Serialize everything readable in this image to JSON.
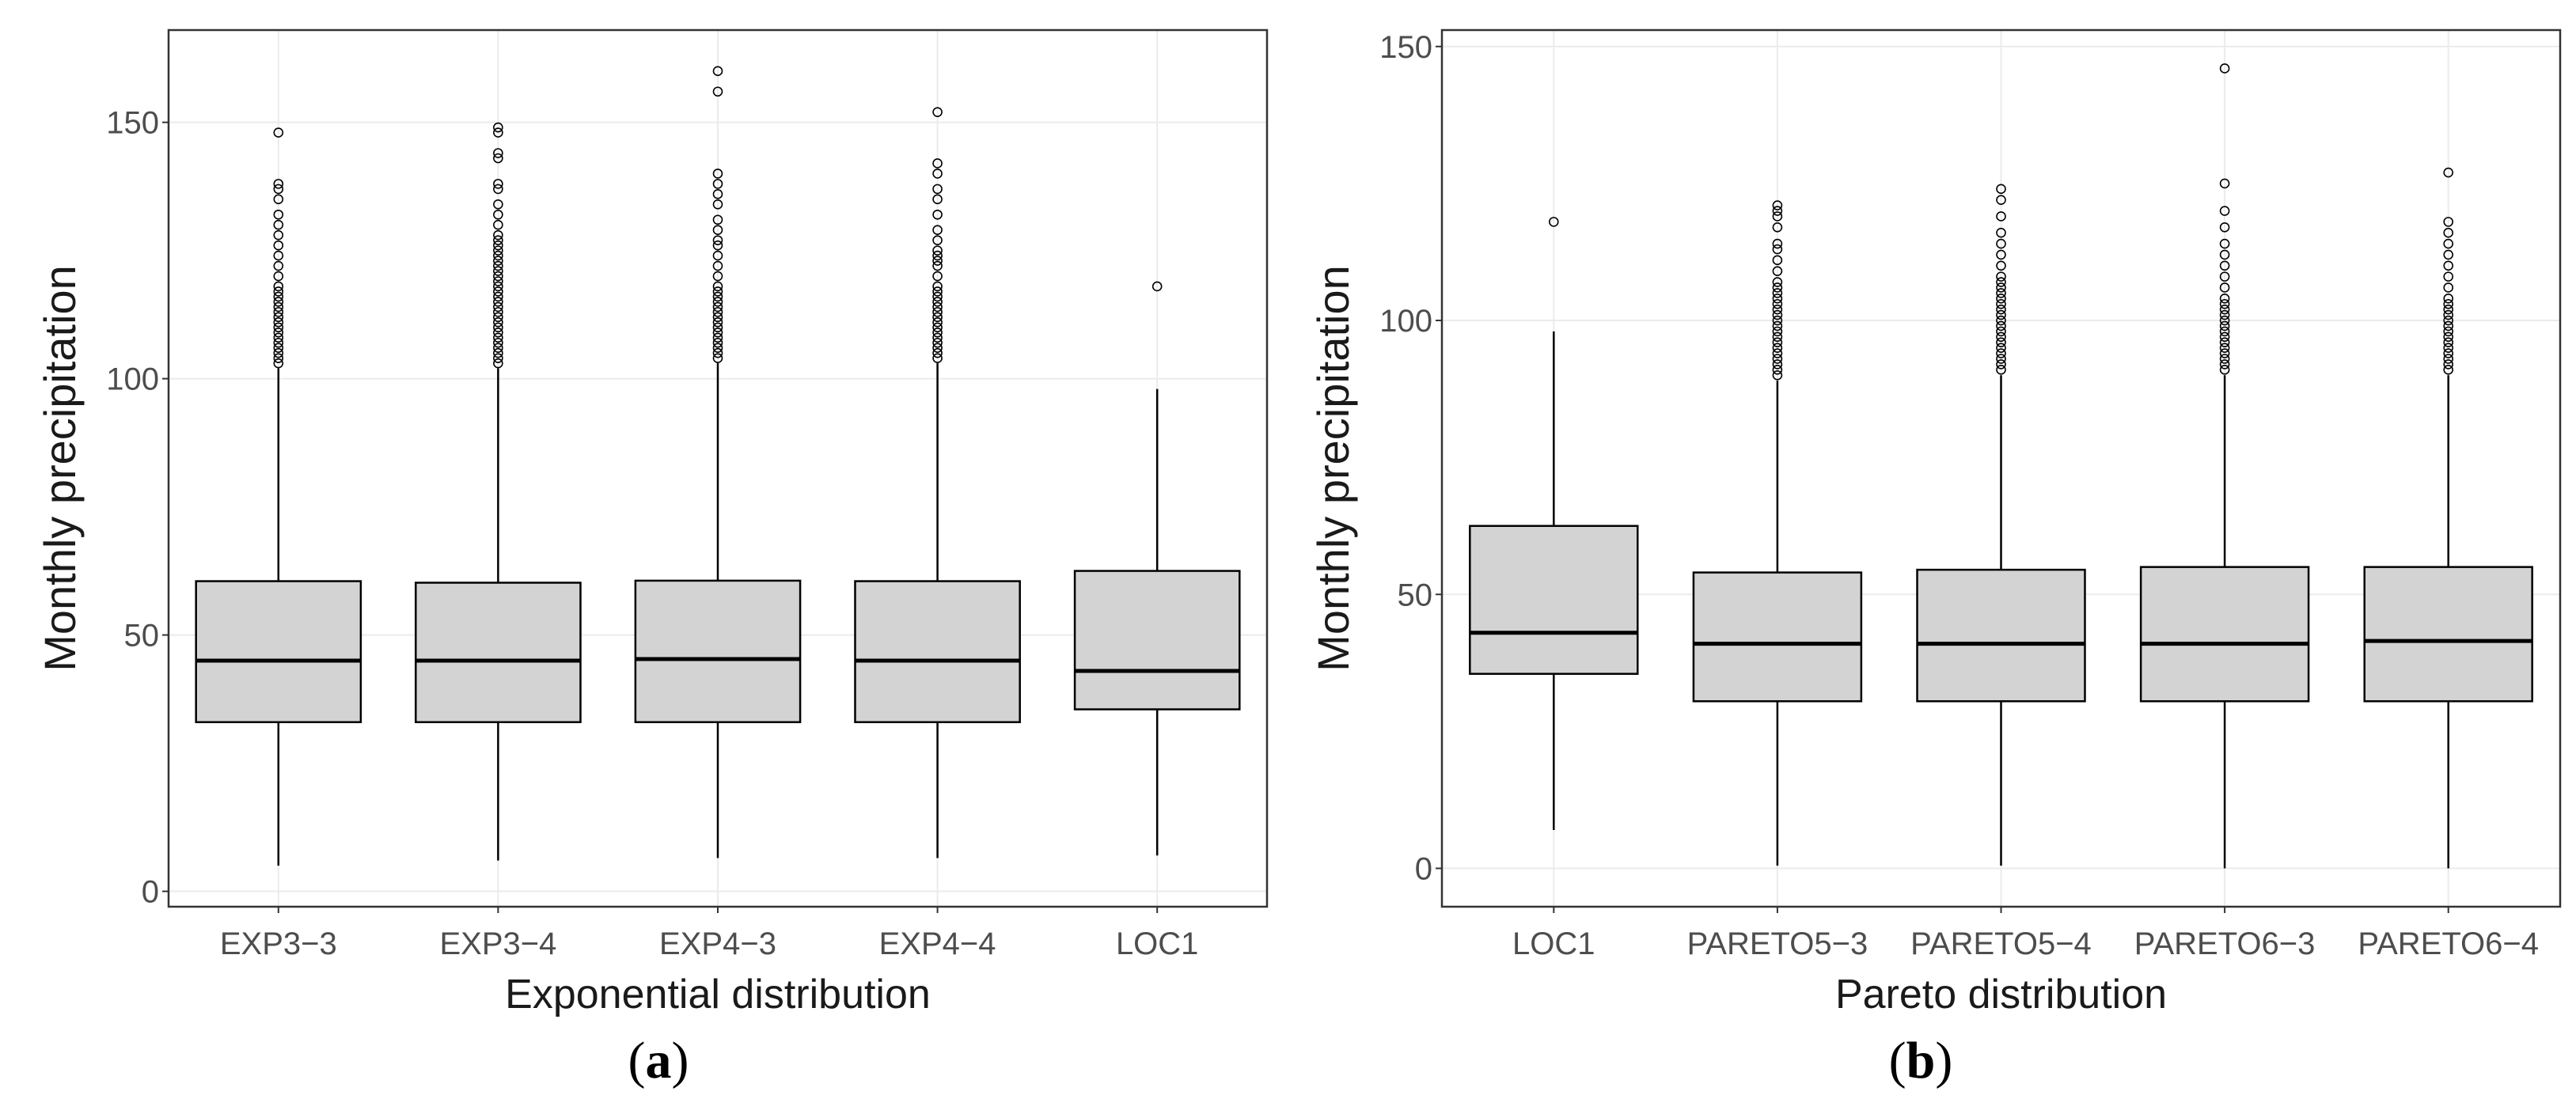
{
  "panels": [
    {
      "caption_letter": "a",
      "chart_data": {
        "type": "box",
        "xlabel": "Exponential distribution",
        "ylabel": "Monthly precipitation",
        "ylim": [
          -3,
          168
        ],
        "yticks": [
          0,
          50,
          100,
          150
        ],
        "grid": true,
        "categories": [
          "EXP3-3",
          "EXP3-4",
          "EXP4-3",
          "EXP4-4",
          "LOC1"
        ],
        "boxes": [
          {
            "whisker_low": 5,
            "q1": 33,
            "median": 45,
            "q3": 60.5,
            "whisker_high": 102,
            "outliers": [
              103,
              104,
              105,
              106,
              107,
              108,
              109,
              110,
              111,
              112,
              113,
              114,
              115,
              116,
              117,
              118,
              120,
              122,
              124,
              126,
              128,
              130,
              132,
              135,
              137,
              138,
              148
            ]
          },
          {
            "whisker_low": 6,
            "q1": 33,
            "median": 45,
            "q3": 60.2,
            "whisker_high": 102,
            "outliers": [
              103,
              104,
              105,
              106,
              107,
              108,
              109,
              110,
              111,
              112,
              113,
              114,
              115,
              116,
              117,
              118,
              119,
              120,
              121,
              122,
              123,
              124,
              125,
              126,
              127,
              128,
              130,
              132,
              134,
              137,
              138,
              143,
              144,
              148,
              149
            ]
          },
          {
            "whisker_low": 6.5,
            "q1": 33,
            "median": 45.3,
            "q3": 60.6,
            "whisker_high": 103,
            "outliers": [
              104,
              105,
              106,
              107,
              108,
              109,
              110,
              111,
              112,
              113,
              114,
              115,
              116,
              117,
              118,
              120,
              122,
              124,
              126,
              127,
              129,
              131,
              134,
              136,
              138,
              140,
              156,
              160
            ]
          },
          {
            "whisker_low": 6.5,
            "q1": 33,
            "median": 45,
            "q3": 60.5,
            "whisker_high": 103,
            "outliers": [
              104,
              105,
              106,
              107,
              108,
              109,
              110,
              111,
              112,
              113,
              114,
              115,
              116,
              117,
              118,
              120,
              122,
              123,
              124,
              125,
              127,
              129,
              132,
              135,
              137,
              140,
              142,
              152
            ]
          },
          {
            "whisker_low": 7,
            "q1": 35.5,
            "median": 43,
            "q3": 62.5,
            "whisker_high": 98,
            "outliers": [
              118
            ]
          }
        ]
      }
    },
    {
      "caption_letter": "b",
      "chart_data": {
        "type": "box",
        "xlabel": "Pareto distribution",
        "ylabel": "Monthly precipitation",
        "ylim": [
          -7,
          153
        ],
        "yticks": [
          0,
          50,
          100,
          150
        ],
        "grid": true,
        "categories": [
          "LOC1",
          "PARETO5-3",
          "PARETO5-4",
          "PARETO6-3",
          "PARETO6-4"
        ],
        "boxes": [
          {
            "whisker_low": 7,
            "q1": 35.5,
            "median": 43,
            "q3": 62.5,
            "whisker_high": 98,
            "outliers": [
              118
            ]
          },
          {
            "whisker_low": 0.5,
            "q1": 30.5,
            "median": 41,
            "q3": 54,
            "whisker_high": 89,
            "outliers": [
              90,
              91,
              92,
              93,
              94,
              95,
              96,
              97,
              98,
              99,
              100,
              101,
              102,
              103,
              104,
              105,
              106,
              107,
              109,
              111,
              113,
              114,
              117,
              119,
              120,
              121
            ]
          },
          {
            "whisker_low": 0.5,
            "q1": 30.5,
            "median": 41,
            "q3": 54.5,
            "whisker_high": 90,
            "outliers": [
              91,
              92,
              93,
              94,
              95,
              96,
              97,
              98,
              99,
              100,
              101,
              102,
              103,
              104,
              105,
              106,
              107,
              108,
              110,
              112,
              114,
              116,
              119,
              122,
              124
            ]
          },
          {
            "whisker_low": 0,
            "q1": 30.5,
            "median": 41,
            "q3": 55,
            "whisker_high": 90,
            "outliers": [
              91,
              92,
              93,
              94,
              95,
              96,
              97,
              98,
              99,
              100,
              101,
              102,
              103,
              104,
              106,
              108,
              110,
              112,
              114,
              117,
              120,
              125,
              146
            ]
          },
          {
            "whisker_low": 0,
            "q1": 30.5,
            "median": 41.5,
            "q3": 55,
            "whisker_high": 90,
            "outliers": [
              91,
              92,
              93,
              94,
              95,
              96,
              97,
              98,
              99,
              100,
              101,
              102,
              103,
              104,
              106,
              108,
              110,
              112,
              114,
              116,
              118,
              127
            ]
          }
        ]
      }
    }
  ],
  "colors": {
    "box_fill": "#d3d3d3",
    "stroke": "#000000",
    "grid": "#ebebeb",
    "panel_border": "#333333",
    "tick_text": "#4d4d4d",
    "axis_title": "#1a1a1a"
  }
}
